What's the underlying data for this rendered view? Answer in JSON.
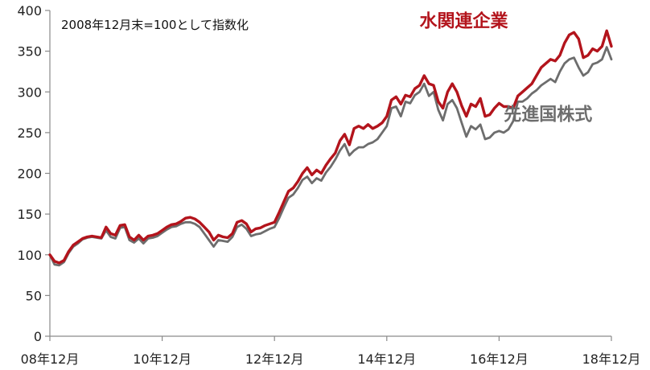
{
  "chart_data": {
    "type": "line",
    "note": "2008年12月末=100として指数化",
    "ylim": [
      0,
      400
    ],
    "yticks": [
      0,
      50,
      100,
      150,
      200,
      250,
      300,
      350,
      400
    ],
    "xlim": [
      0,
      120
    ],
    "xticks": [
      {
        "pos": 0,
        "label": "08年12月"
      },
      {
        "pos": 24,
        "label": "10年12月"
      },
      {
        "pos": 48,
        "label": "12年12月"
      },
      {
        "pos": 72,
        "label": "14年12月"
      },
      {
        "pos": 96,
        "label": "16年12月"
      },
      {
        "pos": 120,
        "label": "18年12月"
      }
    ],
    "grid": false,
    "series": [
      {
        "name": "水関連企業",
        "color": "#b3141c",
        "values": [
          100,
          92,
          90,
          93,
          104,
          112,
          116,
          120,
          122,
          123,
          122,
          121,
          134,
          126,
          124,
          136,
          137,
          122,
          118,
          124,
          118,
          123,
          124,
          126,
          130,
          134,
          137,
          138,
          141,
          145,
          146,
          144,
          140,
          134,
          128,
          118,
          124,
          122,
          121,
          126,
          140,
          142,
          138,
          128,
          132,
          133,
          136,
          138,
          140,
          152,
          165,
          178,
          182,
          190,
          200,
          207,
          198,
          204,
          200,
          210,
          218,
          225,
          240,
          248,
          235,
          255,
          258,
          255,
          260,
          255,
          258,
          262,
          270,
          290,
          294,
          285,
          296,
          294,
          304,
          308,
          320,
          310,
          308,
          288,
          280,
          300,
          310,
          300,
          283,
          270,
          285,
          282,
          292,
          270,
          272,
          280,
          286,
          282,
          282,
          280,
          295,
          300,
          305,
          310,
          320,
          330,
          335,
          340,
          338,
          345,
          360,
          370,
          373,
          365,
          342,
          345,
          353,
          350,
          356,
          375,
          356
        ]
      },
      {
        "name": "先進国株式",
        "color": "#6d6d6d",
        "values": [
          100,
          88,
          87,
          91,
          102,
          110,
          114,
          119,
          121,
          122,
          121,
          120,
          130,
          122,
          120,
          133,
          134,
          118,
          115,
          120,
          114,
          120,
          121,
          123,
          127,
          131,
          134,
          135,
          138,
          140,
          140,
          138,
          134,
          126,
          118,
          110,
          118,
          117,
          116,
          122,
          134,
          137,
          132,
          123,
          125,
          126,
          129,
          132,
          134,
          145,
          158,
          170,
          174,
          182,
          192,
          196,
          188,
          194,
          191,
          201,
          208,
          217,
          228,
          236,
          222,
          228,
          232,
          232,
          236,
          238,
          242,
          250,
          258,
          280,
          282,
          270,
          288,
          286,
          296,
          300,
          310,
          295,
          300,
          278,
          265,
          285,
          290,
          280,
          262,
          245,
          258,
          254,
          260,
          242,
          244,
          250,
          252,
          250,
          254,
          264,
          288,
          288,
          292,
          298,
          302,
          308,
          312,
          316,
          312,
          325,
          335,
          340,
          342,
          330,
          320,
          324,
          334,
          336,
          340,
          355,
          340
        ]
      }
    ],
    "series_labels": [
      {
        "name": "水関連企業",
        "x": 79,
        "y": 380
      },
      {
        "name": "先進国株式",
        "x": 97,
        "y": 265
      }
    ]
  }
}
